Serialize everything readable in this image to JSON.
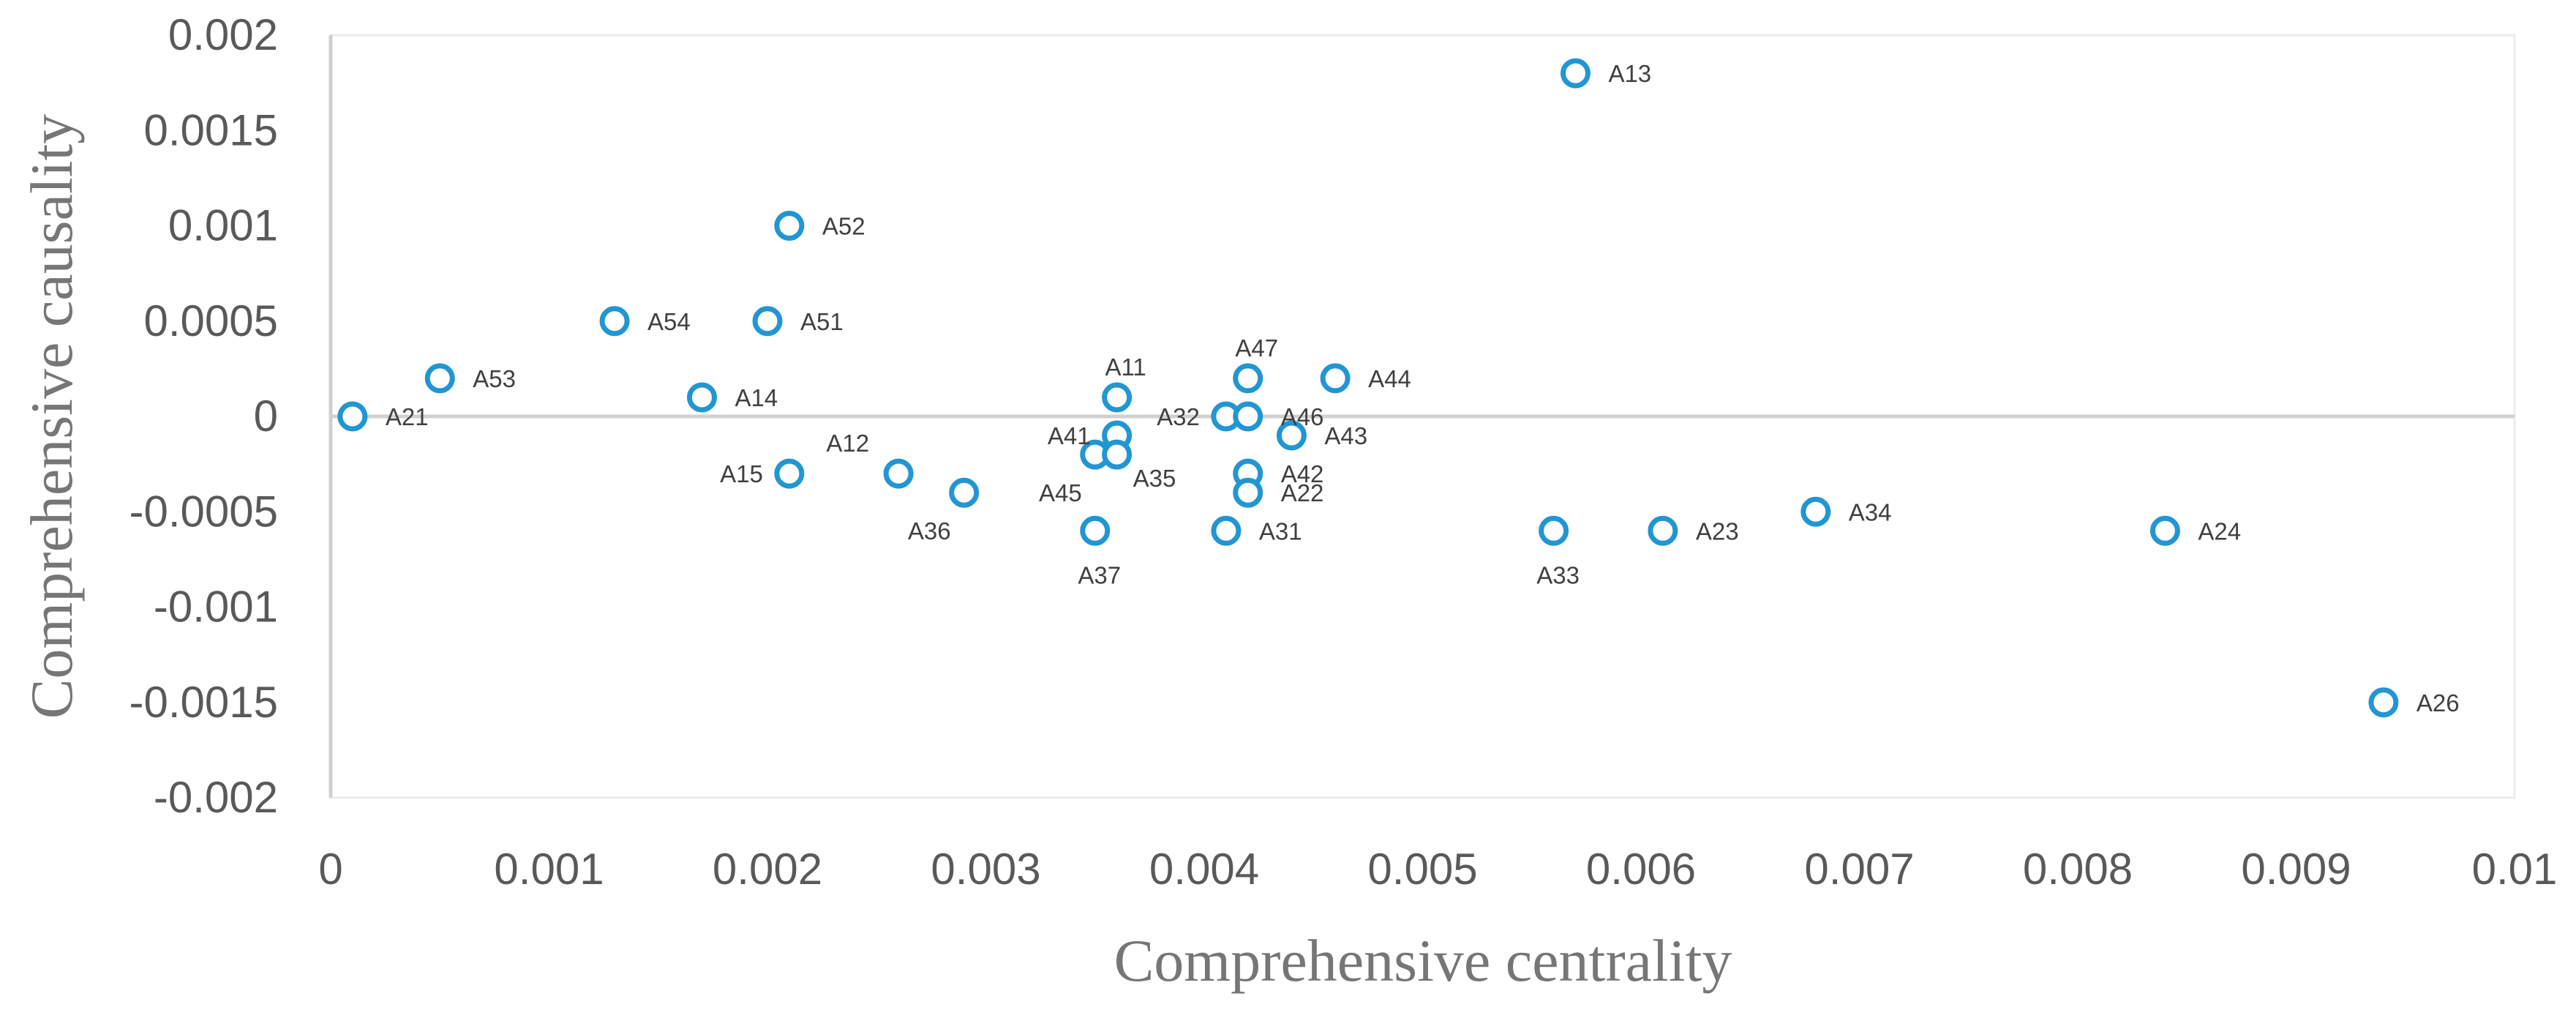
{
  "chart_data": {
    "type": "scatter",
    "title": "",
    "xlabel": "Comprehensive centrality",
    "ylabel": "Comprehensive causality",
    "xlim": [
      0,
      0.01
    ],
    "ylim": [
      -0.002,
      0.002
    ],
    "x_ticks": [
      0,
      0.001,
      0.002,
      0.003,
      0.004,
      0.005,
      0.006,
      0.007,
      0.008,
      0.009,
      0.01
    ],
    "x_tick_labels": [
      "0",
      "0.001",
      "0.002",
      "0.003",
      "0.004",
      "0.005",
      "0.006",
      "0.007",
      "0.008",
      "0.009",
      "0.01"
    ],
    "y_ticks": [
      0.002,
      0.0015,
      0.001,
      0.0005,
      0,
      -0.0005,
      -0.001,
      -0.0015,
      -0.002
    ],
    "y_tick_labels": [
      "0.002",
      "0.0015",
      "0.001",
      "0.0005",
      "0",
      "-0.0005",
      "-0.001",
      "-0.0015",
      "-0.002"
    ],
    "grid": false,
    "marker_color": "#2196D3",
    "points": [
      {
        "label": "A13",
        "x": 0.0057,
        "y": 0.0018,
        "pos": "right"
      },
      {
        "label": "A52",
        "x": 0.0021,
        "y": 0.001,
        "pos": "right"
      },
      {
        "label": "A54",
        "x": 0.0013,
        "y": 0.0005,
        "pos": "right"
      },
      {
        "label": "A51",
        "x": 0.002,
        "y": 0.0005,
        "pos": "right"
      },
      {
        "label": "A53",
        "x": 0.0005,
        "y": 0.0002,
        "pos": "right"
      },
      {
        "label": "A14",
        "x": 0.0017,
        "y": 0.0001,
        "pos": "right"
      },
      {
        "label": "A21",
        "x": 0.0001,
        "y": 0,
        "pos": "right"
      },
      {
        "label": "A11",
        "x": 0.0036,
        "y": 0.0001,
        "pos": "above"
      },
      {
        "label": "A47",
        "x": 0.0042,
        "y": 0.0002,
        "pos": "above"
      },
      {
        "label": "A44",
        "x": 0.0046,
        "y": 0.0002,
        "pos": "right"
      },
      {
        "label": "A32",
        "x": 0.0041,
        "y": 0,
        "pos": "left"
      },
      {
        "label": "A46",
        "x": 0.0042,
        "y": 0,
        "pos": "right"
      },
      {
        "label": "A43",
        "x": 0.0044,
        "y": -0.0001,
        "pos": "right"
      },
      {
        "label": "A41",
        "x": 0.0036,
        "y": -0.0001,
        "pos": "left"
      },
      {
        "label": "A45",
        "x": 0.0035,
        "y": -0.0002,
        "pos": "below-left"
      },
      {
        "label": "A35",
        "x": 0.0036,
        "y": -0.0002,
        "pos": "below-right"
      },
      {
        "label": "A12",
        "x": 0.0026,
        "y": -0.0003,
        "pos": "above-left"
      },
      {
        "label": "A15",
        "x": 0.0021,
        "y": -0.0003,
        "pos": "left"
      },
      {
        "label": "A36",
        "x": 0.0029,
        "y": -0.0004,
        "pos": "below-left"
      },
      {
        "label": "A42",
        "x": 0.0042,
        "y": -0.0003,
        "pos": "right"
      },
      {
        "label": "A22",
        "x": 0.0042,
        "y": -0.0004,
        "pos": "right"
      },
      {
        "label": "A37",
        "x": 0.0035,
        "y": -0.0006,
        "pos": "below"
      },
      {
        "label": "A31",
        "x": 0.0041,
        "y": -0.0006,
        "pos": "right"
      },
      {
        "label": "A33",
        "x": 0.0056,
        "y": -0.0006,
        "pos": "below"
      },
      {
        "label": "A23",
        "x": 0.0061,
        "y": -0.0006,
        "pos": "right"
      },
      {
        "label": "A34",
        "x": 0.0068,
        "y": -0.0005,
        "pos": "right"
      },
      {
        "label": "A24",
        "x": 0.0084,
        "y": -0.0006,
        "pos": "right"
      },
      {
        "label": "A26",
        "x": 0.0094,
        "y": -0.0015,
        "pos": "right"
      }
    ]
  }
}
